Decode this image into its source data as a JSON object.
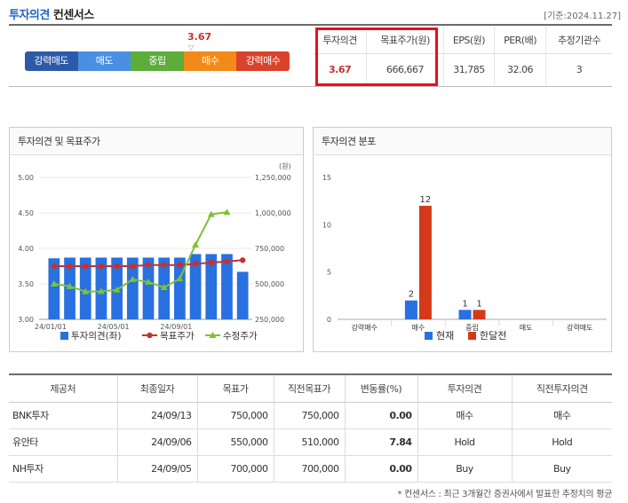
{
  "header": {
    "title_highlight": "투자의견",
    "title_rest": "컨센서스",
    "base_date": "[기준:2024.11.27]"
  },
  "opinion": {
    "score": "3.67",
    "marker": "▽",
    "scale": [
      {
        "label": "강력매도",
        "color": "#2d5aa8"
      },
      {
        "label": "매도",
        "color": "#4a90e2"
      },
      {
        "label": "중립",
        "color": "#5cad3a"
      },
      {
        "label": "매수",
        "color": "#f28a1a"
      },
      {
        "label": "강력매수",
        "color": "#d9432b"
      }
    ]
  },
  "metrics": {
    "headers": [
      "투자의견",
      "목표주가(원)",
      "EPS(원)",
      "PER(배)",
      "추정기관수"
    ],
    "values": [
      "3.67",
      "666,667",
      "31,785",
      "32.06",
      "3"
    ]
  },
  "panels": {
    "chart1_title": "투자의견 및 목표주가",
    "chart2_title": "투자의견 분포"
  },
  "chart_data": [
    {
      "type": "bar",
      "title": "투자의견 및 목표주가",
      "y_left": {
        "ticks": [
          "5.00",
          "4.50",
          "4.00",
          "3.50",
          "3.00"
        ],
        "range": [
          3.0,
          5.0
        ]
      },
      "y_right": {
        "unit": "(원)",
        "ticks": [
          "1,250,000",
          "1,000,000",
          "750,000",
          "500,000",
          "250,000"
        ],
        "range": [
          250000,
          1250000
        ]
      },
      "x_ticks": [
        "24/01/01",
        "24/05/01",
        "24/09/01"
      ],
      "x_tick_positions": [
        0,
        4,
        8
      ],
      "series": [
        {
          "name": "투자의견(좌)",
          "kind": "bar",
          "color": "#2970e0",
          "values": [
            3.86,
            3.87,
            3.87,
            3.87,
            3.87,
            3.87,
            3.87,
            3.87,
            3.87,
            3.92,
            3.92,
            3.92,
            3.67
          ]
        },
        {
          "name": "목표주가",
          "kind": "line",
          "color": "#c9302c",
          "values": [
            625000,
            625000,
            625000,
            625000,
            625000,
            625000,
            633000,
            633000,
            633000,
            641000,
            650000,
            658000,
            667000
          ]
        },
        {
          "name": "수정주가",
          "kind": "line",
          "color": "#7cc236",
          "values": [
            500000,
            483000,
            445000,
            448000,
            458000,
            532000,
            513000,
            475000,
            537000,
            775000,
            990000,
            1005000
          ]
        }
      ]
    },
    {
      "type": "bar",
      "title": "투자의견 분포",
      "categories": [
        "강력매수",
        "매수",
        "중립",
        "매도",
        "강력매도"
      ],
      "ylim": [
        0,
        15
      ],
      "y_ticks": [
        "15",
        "10",
        "5",
        "0"
      ],
      "series": [
        {
          "name": "현재",
          "color": "#2970e0",
          "values": [
            0,
            2,
            1,
            0,
            0
          ]
        },
        {
          "name": "한달전",
          "color": "#d43a1a",
          "values": [
            0,
            12,
            1,
            0,
            0
          ]
        }
      ]
    }
  ],
  "table": {
    "headers": [
      "제공처",
      "최종일자",
      "목표가",
      "직전목표가",
      "변동률(%)",
      "투자의견",
      "직전투자의견"
    ],
    "rows": [
      [
        "BNK투자",
        "24/09/13",
        "750,000",
        "750,000",
        "0.00",
        "매수",
        "매수"
      ],
      [
        "유안타",
        "24/09/06",
        "550,000",
        "510,000",
        "7.84",
        "Hold",
        "Hold"
      ],
      [
        "NH투자",
        "24/09/05",
        "700,000",
        "700,000",
        "0.00",
        "Buy",
        "Buy"
      ]
    ]
  },
  "footnote": "* 컨센서스 : 최근 3개월간 증권사에서 발표한 추정치의 평균"
}
